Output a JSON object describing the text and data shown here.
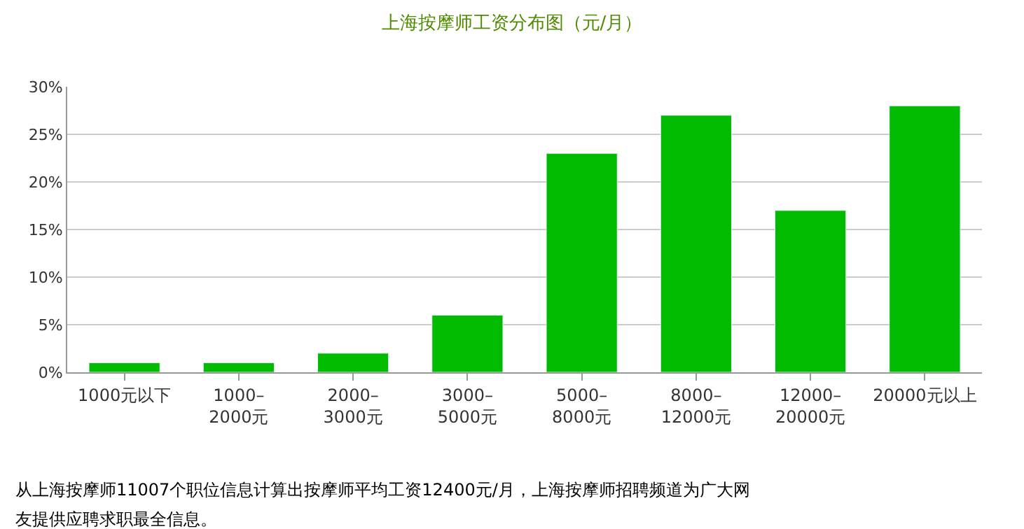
{
  "chart_data": {
    "type": "bar",
    "title": "上海按摩师工资分布图（元/月）",
    "categories": [
      "1000元以下",
      "1000–\n2000元",
      "2000–\n3000元",
      "3000–\n5000元",
      "5000–\n8000元",
      "8000–\n12000元",
      "12000–\n20000元",
      "20000元以上"
    ],
    "values": [
      1,
      1,
      2,
      6,
      23,
      27,
      17,
      28
    ],
    "color": "#00bb00",
    "ylim": [
      0,
      30
    ],
    "yticks": [
      {
        "value": 0,
        "label": "0%"
      },
      {
        "value": 5,
        "label": "5%"
      },
      {
        "value": 10,
        "label": "10%"
      },
      {
        "value": 15,
        "label": "15%"
      },
      {
        "value": 20,
        "label": "20%"
      },
      {
        "value": 25,
        "label": "25%"
      },
      {
        "value": 30,
        "label": "30%"
      }
    ],
    "grid": "y",
    "annotations": [
      "从上海按摩师11007个职位信息计算出按摩师平均工资12400元/月，上海按摩师招聘频道为广大网",
      "友提供应聘求职最全信息。"
    ]
  }
}
